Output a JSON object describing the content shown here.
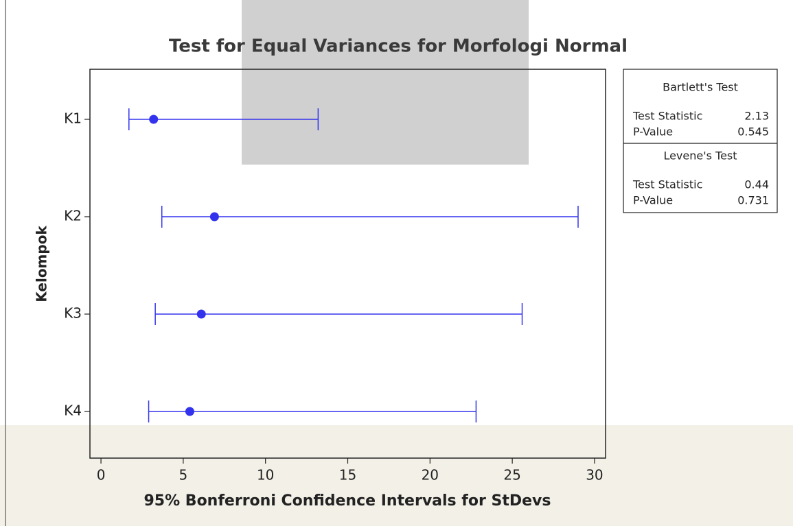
{
  "chart_data": {
    "type": "interval",
    "title": "Test for Equal Variances for Morfologi Normal",
    "xlabel": "95% Bonferroni Confidence Intervals for StDevs",
    "ylabel": "Kelompok",
    "categories": [
      "K1",
      "K2",
      "K3",
      "K4"
    ],
    "values": [
      3.2,
      6.9,
      6.1,
      5.4
    ],
    "lower": [
      1.7,
      3.7,
      3.3,
      2.9
    ],
    "upper": [
      13.2,
      29.0,
      25.6,
      22.8
    ],
    "color": "#3333ee",
    "xlim": [
      -0.67,
      30.67
    ],
    "xticks": [
      0,
      5,
      10,
      15,
      20,
      25,
      30
    ],
    "tests": [
      {
        "title": "Bartlett's Test",
        "rows": [
          [
            "Test Statistic",
            "2.13"
          ],
          [
            "P-Value",
            "0.545"
          ]
        ]
      },
      {
        "title": "Levene's Test",
        "rows": [
          [
            "Test Statistic",
            "0.44"
          ],
          [
            "P-Value",
            "0.731"
          ]
        ]
      }
    ]
  }
}
